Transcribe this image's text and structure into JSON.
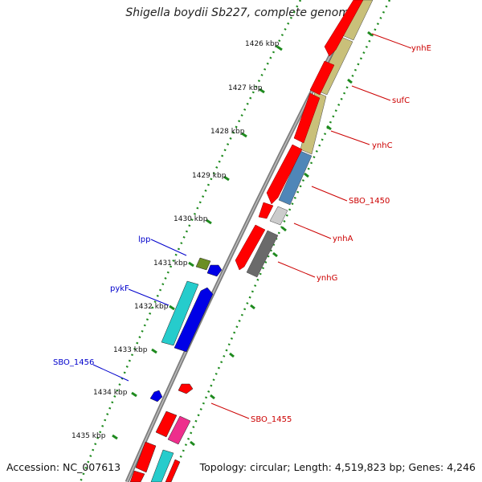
{
  "map": {
    "title": "Shigella boydii Sb227, complete genome",
    "accession": "Accession: NC_007613",
    "summary": "Topology: circular; Length: 4,519,823 bp; Genes: 4,246"
  },
  "scale": {
    "labels": [
      "1426 kbp",
      "1427 kbp",
      "1428 kbp",
      "1429 kbp",
      "1430 kbp",
      "1431 kbp",
      "1432 kbp",
      "1433 kbp",
      "1434 kbp",
      "1435 kbp"
    ]
  },
  "genes": {
    "right_labels": [
      "ynhE",
      "sufC",
      "ynhC",
      "SBO_1450",
      "ynhA",
      "ynhG",
      "SBO_1455"
    ],
    "left_labels": [
      "lpp",
      "pykF",
      "SBO_1456"
    ]
  },
  "colors": {
    "backbone": "#8a8a8a",
    "tick": "#1e8a1e",
    "red_cds": "#ff0000",
    "blue_cds": "#0000e6",
    "cyan_cds": "#26cccc",
    "khaki_feature": "#c9c07a",
    "steelblue_feature": "#4f86b8",
    "lightgray_feature": "#cccccc",
    "darkgray_feature": "#6a6a6a",
    "olive_feature": "#6b8e23",
    "magenta_feature": "#ee2e8c",
    "right_label_color": "#cc0000",
    "left_label_color": "#0000cc"
  }
}
